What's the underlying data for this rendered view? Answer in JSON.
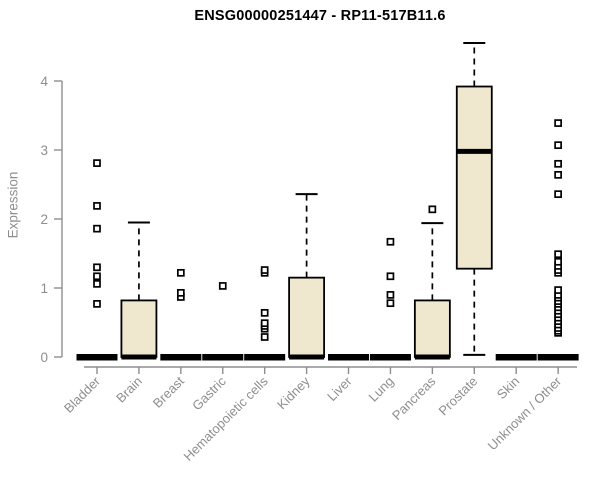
{
  "chart_data": {
    "type": "boxplot",
    "title": "ENSG00000251447 - RP11-517B11.6",
    "ylabel": "Expression",
    "xlabel": "",
    "ylim": [
      0,
      4.6
    ],
    "yticks": [
      0,
      1,
      2,
      3,
      4
    ],
    "grid": false,
    "legend": false,
    "axis_color": "#8e8e8e",
    "box_fill": "#efe8cf",
    "box_stroke": "#000000",
    "categories": [
      "Bladder",
      "Brain",
      "Breast",
      "Gastric",
      "Hematopoietic cells",
      "Kidney",
      "Liver",
      "Lung",
      "Pancreas",
      "Prostate",
      "Skin",
      "Unknown / Other"
    ],
    "series": [
      {
        "name": "Bladder",
        "q1": 0,
        "median": 0,
        "q3": 0,
        "whisker_low": 0,
        "whisker_high": 0,
        "outliers": [
          0.77,
          1.06,
          1.17,
          1.3,
          1.86,
          2.19,
          2.81
        ]
      },
      {
        "name": "Brain",
        "q1": 0,
        "median": 0,
        "q3": 0.82,
        "whisker_low": 0,
        "whisker_high": 1.95,
        "outliers": []
      },
      {
        "name": "Breast",
        "q1": 0,
        "median": 0,
        "q3": 0,
        "whisker_low": 0,
        "whisker_high": 0,
        "outliers": [
          0.87,
          0.93,
          1.22
        ]
      },
      {
        "name": "Gastric",
        "q1": 0,
        "median": 0,
        "q3": 0,
        "whisker_low": 0,
        "whisker_high": 0,
        "outliers": [
          1.03
        ]
      },
      {
        "name": "Hematopoietic cells",
        "q1": 0,
        "median": 0,
        "q3": 0,
        "whisker_low": 0,
        "whisker_high": 0,
        "outliers": [
          0.29,
          0.41,
          0.45,
          0.49,
          0.64,
          1.22,
          1.26
        ]
      },
      {
        "name": "Kidney",
        "q1": 0,
        "median": 0,
        "q3": 1.15,
        "whisker_low": 0,
        "whisker_high": 2.36,
        "outliers": []
      },
      {
        "name": "Liver",
        "q1": 0,
        "median": 0,
        "q3": 0,
        "whisker_low": 0,
        "whisker_high": 0,
        "outliers": []
      },
      {
        "name": "Lung",
        "q1": 0,
        "median": 0,
        "q3": 0,
        "whisker_low": 0,
        "whisker_high": 0,
        "outliers": [
          0.78,
          0.9,
          1.17,
          1.67
        ]
      },
      {
        "name": "Pancreas",
        "q1": 0,
        "median": 0,
        "q3": 0.82,
        "whisker_low": 0,
        "whisker_high": 1.94,
        "outliers": [
          2.14
        ]
      },
      {
        "name": "Prostate",
        "q1": 1.28,
        "median": 2.98,
        "q3": 3.92,
        "whisker_low": 0.03,
        "whisker_high": 4.55,
        "outliers": []
      },
      {
        "name": "Skin",
        "q1": 0,
        "median": 0,
        "q3": 0,
        "whisker_low": 0,
        "whisker_high": 0,
        "outliers": []
      },
      {
        "name": "Unknown / Other",
        "q1": 0,
        "median": 0,
        "q3": 0,
        "whisker_low": 0,
        "whisker_high": 0,
        "outliers": [
          0.35,
          0.38,
          0.42,
          0.47,
          0.52,
          0.57,
          0.62,
          0.67,
          0.72,
          0.77,
          0.81,
          0.86,
          0.9,
          0.97,
          1.22,
          1.26,
          1.32,
          1.38,
          1.49,
          2.36,
          2.64,
          2.8,
          3.07,
          3.39
        ]
      }
    ]
  }
}
